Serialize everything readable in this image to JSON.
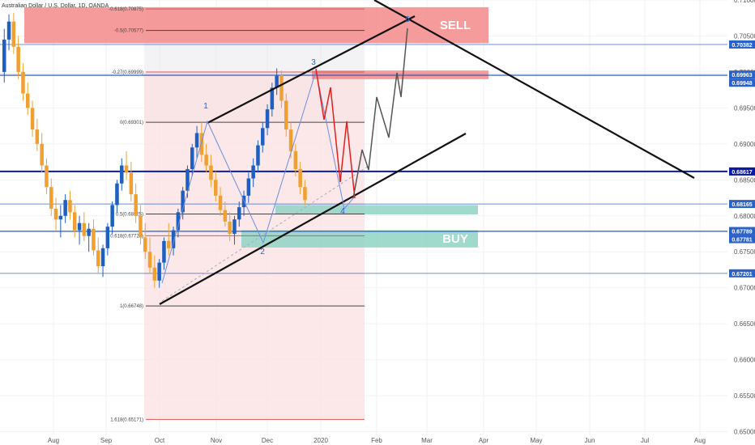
{
  "chart_data": {
    "type": "candlestick",
    "title": "Australian Dollar / U.S. Dollar, 1D, OANDA",
    "x_ticks": [
      "Aug",
      "Sep",
      "Oct",
      "Nov",
      "Dec",
      "2020",
      "Feb",
      "Mar",
      "Apr",
      "May",
      "Jun",
      "Jul",
      "Aug"
    ],
    "y_ticks": [
      "0.71000",
      "0.70500",
      "0.70000",
      "0.69500",
      "0.69000",
      "0.68500",
      "0.68000",
      "0.67500",
      "0.67000",
      "0.66500",
      "0.66000",
      "0.65500",
      "0.65000"
    ],
    "ylim": [
      0.6495,
      0.71
    ],
    "price_badges": [
      {
        "value": 0.70382,
        "label": "0.70382",
        "color": "#2a62c9"
      },
      {
        "value": 0.69963,
        "label": "0.69963",
        "color": "#2a62c9"
      },
      {
        "value": 0.69948,
        "label": "0.69948",
        "color": "#2a62c9"
      },
      {
        "value": 0.68617,
        "label": "0.68617",
        "color": "#0a1aa8"
      },
      {
        "value": 0.68165,
        "label": "0.68165",
        "color": "#2a62c9"
      },
      {
        "value": 0.67789,
        "label": "0.67789",
        "color": "#2a62c9"
      },
      {
        "value": 0.67781,
        "label": "0.67781",
        "color": "#2a62c9"
      },
      {
        "value": 0.67201,
        "label": "0.67201",
        "color": "#2a62c9"
      }
    ],
    "fib_levels": [
      {
        "label": "-0.618(0.70875)",
        "value": 0.70875
      },
      {
        "label": "-0.5(0.70577)",
        "value": 0.70577
      },
      {
        "label": "-0.27(0.69999)",
        "value": 0.69999
      },
      {
        "label": "0(0.69301)",
        "value": 0.69301
      },
      {
        "label": "0.5(0.68025)",
        "value": 0.68025
      },
      {
        "label": "0.618(0.67723)",
        "value": 0.67723
      },
      {
        "label": "1(0.66748)",
        "value": 0.66748
      },
      {
        "label": "1.618(0.65171)",
        "value": 0.65171
      }
    ],
    "zones": [
      {
        "label": "SELL",
        "top": 0.709,
        "bottom": 0.704,
        "color": "#f58a8a"
      },
      {
        "label": "",
        "top": 0.7002,
        "bottom": 0.699,
        "color": "#f58a8a"
      },
      {
        "label": "",
        "top": 0.6815,
        "bottom": 0.6802,
        "color": "#8fd4c4"
      },
      {
        "label": "BUY",
        "top": 0.678,
        "bottom": 0.6756,
        "color": "#8fd4c4"
      }
    ],
    "wave_labels": [
      "1",
      "2",
      "3",
      "4",
      "5"
    ],
    "candles": [
      [
        0.7,
        0.706,
        0.6985,
        0.7045
      ],
      [
        0.7045,
        0.708,
        0.703,
        0.707
      ],
      [
        0.707,
        0.7082,
        0.7025,
        0.7035
      ],
      [
        0.7035,
        0.705,
        0.699,
        0.7
      ],
      [
        0.7,
        0.7012,
        0.696,
        0.697
      ],
      [
        0.697,
        0.6985,
        0.694,
        0.695
      ],
      [
        0.695,
        0.696,
        0.691,
        0.692
      ],
      [
        0.692,
        0.6935,
        0.689,
        0.69
      ],
      [
        0.69,
        0.6915,
        0.686,
        0.687
      ],
      [
        0.687,
        0.688,
        0.683,
        0.684
      ],
      [
        0.684,
        0.6852,
        0.68,
        0.681
      ],
      [
        0.681,
        0.6825,
        0.678,
        0.6795
      ],
      [
        0.6795,
        0.6815,
        0.677,
        0.68
      ],
      [
        0.68,
        0.683,
        0.679,
        0.6822
      ],
      [
        0.6822,
        0.6835,
        0.6795,
        0.6805
      ],
      [
        0.6805,
        0.6815,
        0.677,
        0.678
      ],
      [
        0.678,
        0.68,
        0.676,
        0.679
      ],
      [
        0.679,
        0.6805,
        0.6765,
        0.6772
      ],
      [
        0.6772,
        0.679,
        0.675,
        0.6782
      ],
      [
        0.6782,
        0.6795,
        0.6745,
        0.6752
      ],
      [
        0.6752,
        0.677,
        0.672,
        0.673
      ],
      [
        0.673,
        0.676,
        0.6715,
        0.6755
      ],
      [
        0.6755,
        0.679,
        0.6745,
        0.6785
      ],
      [
        0.6785,
        0.682,
        0.6775,
        0.6815
      ],
      [
        0.6815,
        0.685,
        0.6805,
        0.6845
      ],
      [
        0.6845,
        0.688,
        0.6835,
        0.687
      ],
      [
        0.687,
        0.689,
        0.685,
        0.686
      ],
      [
        0.686,
        0.6875,
        0.682,
        0.683
      ],
      [
        0.683,
        0.6845,
        0.679,
        0.68
      ],
      [
        0.68,
        0.6815,
        0.676,
        0.677
      ],
      [
        0.677,
        0.679,
        0.674,
        0.675
      ],
      [
        0.675,
        0.677,
        0.672,
        0.6728
      ],
      [
        0.6728,
        0.6745,
        0.67,
        0.671
      ],
      [
        0.671,
        0.674,
        0.67,
        0.6735
      ],
      [
        0.6735,
        0.677,
        0.6725,
        0.6765
      ],
      [
        0.6765,
        0.679,
        0.6745,
        0.6755
      ],
      [
        0.6755,
        0.6785,
        0.6745,
        0.678
      ],
      [
        0.678,
        0.681,
        0.677,
        0.6805
      ],
      [
        0.6805,
        0.684,
        0.6795,
        0.6835
      ],
      [
        0.6835,
        0.687,
        0.6825,
        0.6865
      ],
      [
        0.6865,
        0.69,
        0.6855,
        0.6895
      ],
      [
        0.6895,
        0.6925,
        0.688,
        0.6915
      ],
      [
        0.6915,
        0.693,
        0.6875,
        0.6885
      ],
      [
        0.6885,
        0.69,
        0.686,
        0.687
      ],
      [
        0.687,
        0.6885,
        0.684,
        0.685
      ],
      [
        0.685,
        0.6862,
        0.682,
        0.6828
      ],
      [
        0.6828,
        0.684,
        0.68,
        0.6808
      ],
      [
        0.6808,
        0.682,
        0.6785,
        0.6792
      ],
      [
        0.6792,
        0.6805,
        0.6765,
        0.6775
      ],
      [
        0.6775,
        0.68,
        0.676,
        0.6795
      ],
      [
        0.6795,
        0.682,
        0.6785,
        0.6812
      ],
      [
        0.6812,
        0.6835,
        0.68,
        0.6828
      ],
      [
        0.6828,
        0.686,
        0.6818,
        0.6852
      ],
      [
        0.6852,
        0.688,
        0.684,
        0.687
      ],
      [
        0.687,
        0.6905,
        0.686,
        0.6898
      ],
      [
        0.6898,
        0.693,
        0.6888,
        0.6922
      ],
      [
        0.6922,
        0.6955,
        0.6912,
        0.6948
      ],
      [
        0.6948,
        0.6985,
        0.6938,
        0.6978
      ],
      [
        0.6978,
        0.7005,
        0.6968,
        0.6995
      ],
      [
        0.6995,
        0.7002,
        0.695,
        0.696
      ],
      [
        0.696,
        0.697,
        0.691,
        0.692
      ],
      [
        0.692,
        0.693,
        0.688,
        0.689
      ],
      [
        0.689,
        0.69,
        0.6855,
        0.6865
      ],
      [
        0.6865,
        0.6875,
        0.683,
        0.684
      ],
      [
        0.684,
        0.685,
        0.6815,
        0.6822
      ]
    ]
  }
}
